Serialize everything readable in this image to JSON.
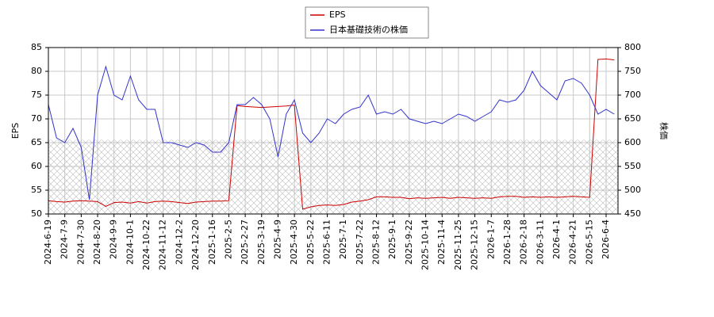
{
  "chart_data": {
    "type": "line",
    "categories": [
      "2024-6-19",
      null,
      "2024-7-9",
      null,
      "2024-7-30",
      null,
      "2024-8-20",
      null,
      "2024-9-9",
      null,
      "2024-10-1",
      null,
      "2024-10-22",
      null,
      "2024-11-12",
      null,
      "2024-12-2",
      null,
      "2024-12-20",
      null,
      "2025-1-16",
      null,
      "2025-2-5",
      null,
      "2025-2-27",
      null,
      "2025-3-19",
      null,
      "2025-4-9",
      null,
      "2025-4-30",
      null,
      "2025-5-22",
      null,
      "2025-6-11",
      null,
      "2025-7-1",
      null,
      "2025-7-22",
      null,
      "2025-8-12",
      null,
      "2025-9-1",
      null,
      "2025-9-22",
      null,
      "2025-10-14",
      null,
      "2025-11-4",
      null,
      "2025-11-25",
      null,
      "2025-12-15",
      null,
      "2026-1-7",
      null,
      "2026-1-28",
      null,
      "2026-2-18",
      null,
      "2026-3-11",
      null,
      "2026-4-1",
      null,
      "2026-4-21",
      null,
      "2026-5-15",
      null,
      "2026-6-4",
      null
    ],
    "series": [
      {
        "name": "EPS",
        "color": "#cc0000",
        "values": [
          52.8,
          52.6,
          52.5,
          52.7,
          52.8,
          52.7,
          52.6,
          51.6,
          52.4,
          52.5,
          52.3,
          52.6,
          52.3,
          52.6,
          52.7,
          52.6,
          52.4,
          52.2,
          52.5,
          52.6,
          52.7,
          52.7,
          52.8,
          72.8,
          72.6,
          72.5,
          72.4,
          72.5,
          72.6,
          72.7,
          72.9,
          51.0,
          51.5,
          51.8,
          51.9,
          51.8,
          52.0,
          52.5,
          52.7,
          53.0,
          53.6,
          53.6,
          53.5,
          53.5,
          53.2,
          53.4,
          53.3,
          53.4,
          53.5,
          53.3,
          53.5,
          53.4,
          53.3,
          53.4,
          53.3,
          53.6,
          53.7,
          53.7,
          53.5,
          53.6,
          53.5,
          53.6,
          53.5,
          53.6,
          53.7,
          53.6,
          53.5,
          82.5,
          82.6,
          82.4
        ]
      },
      {
        "name": "日本基礎技術の株価",
        "color": "#3333cc",
        "axis": "y2",
        "values": [
          680,
          610,
          600,
          630,
          590,
          480,
          700,
          760,
          700,
          690,
          740,
          690,
          670,
          670,
          600,
          600,
          595,
          590,
          600,
          595,
          580,
          580,
          600,
          680,
          680,
          695,
          680,
          650,
          570,
          660,
          690,
          620,
          600,
          620,
          650,
          640,
          660,
          670,
          675,
          700,
          660,
          665,
          660,
          670,
          650,
          645,
          640,
          645,
          640,
          650,
          660,
          655,
          645,
          655,
          665,
          690,
          685,
          690,
          710,
          750,
          720,
          705,
          690,
          730,
          735,
          725,
          700,
          660,
          670,
          660
        ]
      }
    ],
    "ylabel": "EPS",
    "y2label": "株価",
    "ylim": [
      50,
      85
    ],
    "yticks": [
      50,
      55,
      60,
      65,
      70,
      75,
      80,
      85
    ],
    "y2lim": [
      450,
      800
    ],
    "y2ticks": [
      450,
      500,
      550,
      600,
      650,
      700,
      750,
      800
    ],
    "grid": true
  }
}
